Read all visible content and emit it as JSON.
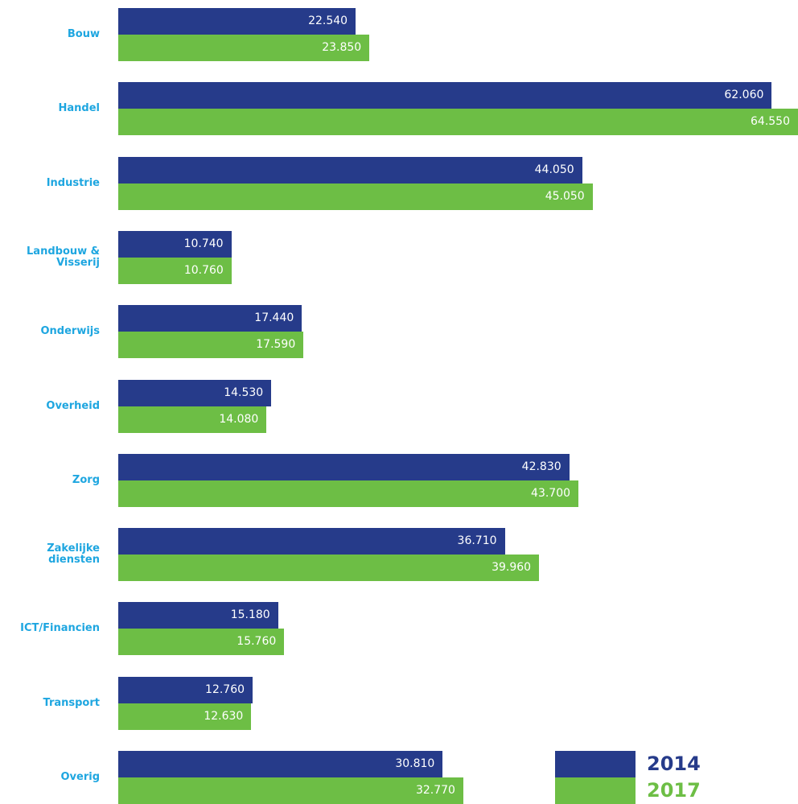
{
  "chart_data": {
    "type": "bar",
    "orientation": "horizontal",
    "categories": [
      "Bouw",
      "Handel",
      "Industrie",
      "Landbouw & Visserij",
      "Onderwijs",
      "Overheid",
      "Zorg",
      "Zakelijke diensten",
      "ICT/Financien",
      "Transport",
      "Overig"
    ],
    "series": [
      {
        "name": "2014",
        "color": "#263b8a",
        "values": [
          22540,
          62060,
          44050,
          10740,
          17440,
          14530,
          42830,
          36710,
          15180,
          12760,
          30810
        ],
        "value_labels": [
          "22.540",
          "62.060",
          "44.050",
          "10.740",
          "17.440",
          "14.530",
          "42.830",
          "36.710",
          "15.180",
          "12.760",
          "30.810"
        ]
      },
      {
        "name": "2017",
        "color": "#6dbe45",
        "values": [
          23850,
          64550,
          45050,
          10760,
          17590,
          14080,
          43700,
          39960,
          15760,
          12630,
          32770
        ],
        "value_labels": [
          "23.850",
          "64.550",
          "45.050",
          "10.760",
          "17.590",
          "14.080",
          "43.700",
          "39.960",
          "15.760",
          "12.630",
          "32.770"
        ]
      }
    ],
    "legend": "bottom-right"
  }
}
